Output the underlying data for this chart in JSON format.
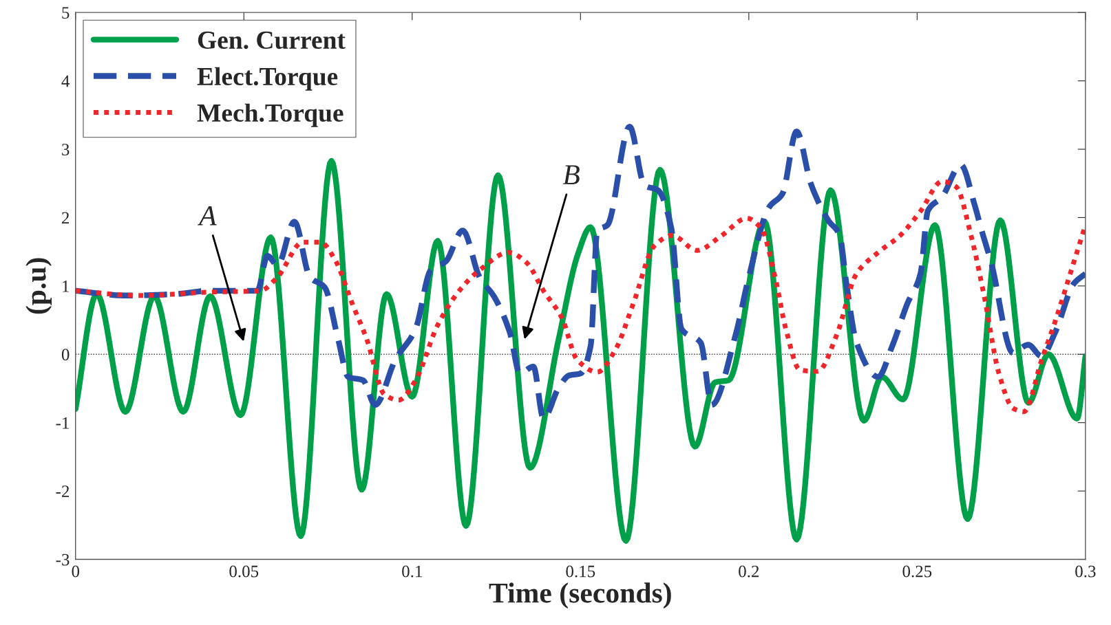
{
  "chart_data": {
    "type": "line",
    "xlabel": "Time (seconds)",
    "ylabel": "(p.u)",
    "xlim": [
      0,
      0.3
    ],
    "ylim": [
      -3,
      5
    ],
    "xticks": [
      0,
      0.05,
      0.1,
      0.15,
      0.2,
      0.25,
      0.3
    ],
    "yticks": [
      -3,
      -2,
      -1,
      0,
      1,
      2,
      3,
      4,
      5
    ],
    "grid": false,
    "legend": "top left",
    "series": [
      {
        "name": "Gen. Current",
        "color": "#00a04a",
        "line_style": "solid",
        "x": [
          0,
          0.0063,
          0.0148,
          0.0234,
          0.032,
          0.04,
          0.049,
          0.058,
          0.0669,
          0.076,
          0.085,
          0.0924,
          0.1,
          0.1076,
          0.116,
          0.1255,
          0.135,
          0.1435,
          0.1492,
          0.153,
          0.1635,
          0.1736,
          0.184,
          0.19,
          0.194,
          0.2047,
          0.2142,
          0.2243,
          0.2342,
          0.2395,
          0.2458,
          0.2553,
          0.265,
          0.2747,
          0.2831,
          0.289,
          0.2975,
          0.3
        ],
        "values": [
          -0.8,
          0.88,
          -0.84,
          0.85,
          -0.84,
          0.85,
          -0.89,
          1.71,
          -2.66,
          2.83,
          -1.98,
          0.88,
          -0.62,
          1.66,
          -2.51,
          2.62,
          -1.66,
          0.22,
          1.46,
          1.86,
          -2.73,
          2.7,
          -1.35,
          -0.41,
          -0.38,
          1.94,
          -2.71,
          2.4,
          -0.97,
          -0.33,
          -0.66,
          1.89,
          -2.41,
          1.96,
          -0.71,
          0,
          -0.94,
          -0.03
        ]
      },
      {
        "name": "Elect.Torque",
        "color": "#2a4fa8",
        "line_style": "dashed",
        "x": [
          0,
          0.0148,
          0.0295,
          0.04,
          0.054,
          0.057,
          0.06,
          0.065,
          0.0696,
          0.074,
          0.078,
          0.081,
          0.0854,
          0.089,
          0.095,
          0.101,
          0.1055,
          0.11,
          0.115,
          0.12,
          0.1245,
          0.129,
          0.132,
          0.136,
          0.139,
          0.1435,
          0.1466,
          0.15,
          0.153,
          0.155,
          0.158,
          0.1646,
          0.169,
          0.173,
          0.177,
          0.18,
          0.1857,
          0.189,
          0.196,
          0.2,
          0.206,
          0.21,
          0.2142,
          0.2184,
          0.2236,
          0.227,
          0.229,
          0.232,
          0.2384,
          0.2426,
          0.247,
          0.251,
          0.2532,
          0.2574,
          0.263,
          0.267,
          0.269,
          0.272,
          0.2785,
          0.283,
          0.287,
          0.291,
          0.2965,
          0.3
        ],
        "values": [
          0.93,
          0.86,
          0.88,
          0.93,
          0.93,
          1.44,
          1.3,
          1.94,
          1.13,
          0.98,
          0.22,
          -0.33,
          -0.38,
          -0.74,
          -0.08,
          0.37,
          1.23,
          1.36,
          1.81,
          1.13,
          0.83,
          0.32,
          -0.28,
          -0.18,
          -0.94,
          -0.49,
          -0.31,
          -0.28,
          0.12,
          1.81,
          1.89,
          3.33,
          2.47,
          2.4,
          1.84,
          0.37,
          0.17,
          -0.74,
          0.27,
          1.13,
          2.15,
          2.35,
          3.26,
          2.5,
          1.96,
          1.74,
          1.03,
          0.17,
          -0.33,
          0.12,
          0.73,
          1.18,
          2.1,
          2.3,
          2.77,
          2.2,
          1.84,
          1.34,
          0.02,
          0.14,
          -0.03,
          0.32,
          1.03,
          1.18
        ]
      },
      {
        "name": "Mech.Torque",
        "color": "#f0262a",
        "line_style": "dotted",
        "x": [
          0,
          0.019,
          0.04,
          0.0549,
          0.06,
          0.0675,
          0.0728,
          0.077,
          0.0823,
          0.0865,
          0.0918,
          0.096,
          0.101,
          0.1076,
          0.114,
          0.12,
          0.1287,
          0.134,
          0.139,
          0.1445,
          0.149,
          0.155,
          0.1604,
          0.1656,
          0.172,
          0.1772,
          0.1846,
          0.192,
          0.1994,
          0.2037,
          0.2078,
          0.211,
          0.2152,
          0.2205,
          0.226,
          0.232,
          0.2384,
          0.245,
          0.2511,
          0.2574,
          0.2616,
          0.266,
          0.27,
          0.2743,
          0.2785,
          0.2817,
          0.287,
          0.291,
          0.2965,
          0.3
        ],
        "values": [
          0.93,
          0.86,
          0.91,
          0.93,
          1.13,
          1.64,
          1.64,
          1.39,
          0.73,
          0.22,
          -0.59,
          -0.67,
          -0.38,
          0.43,
          0.93,
          1.23,
          1.49,
          1.34,
          0.93,
          0.53,
          -0.08,
          -0.26,
          0.07,
          0.73,
          1.59,
          1.74,
          1.52,
          1.74,
          1.99,
          1.84,
          1.13,
          0.37,
          -0.23,
          -0.25,
          0.27,
          1.18,
          1.49,
          1.74,
          2.1,
          2.53,
          2.45,
          1.74,
          0.83,
          -0.28,
          -0.79,
          -0.84,
          -0.08,
          0.48,
          1.34,
          1.89
        ]
      }
    ],
    "ref_lines": [
      {
        "axis": "y",
        "value": 0,
        "color": "#555555",
        "line_style": "dotted"
      }
    ],
    "annotations": [
      "A",
      "B"
    ]
  }
}
